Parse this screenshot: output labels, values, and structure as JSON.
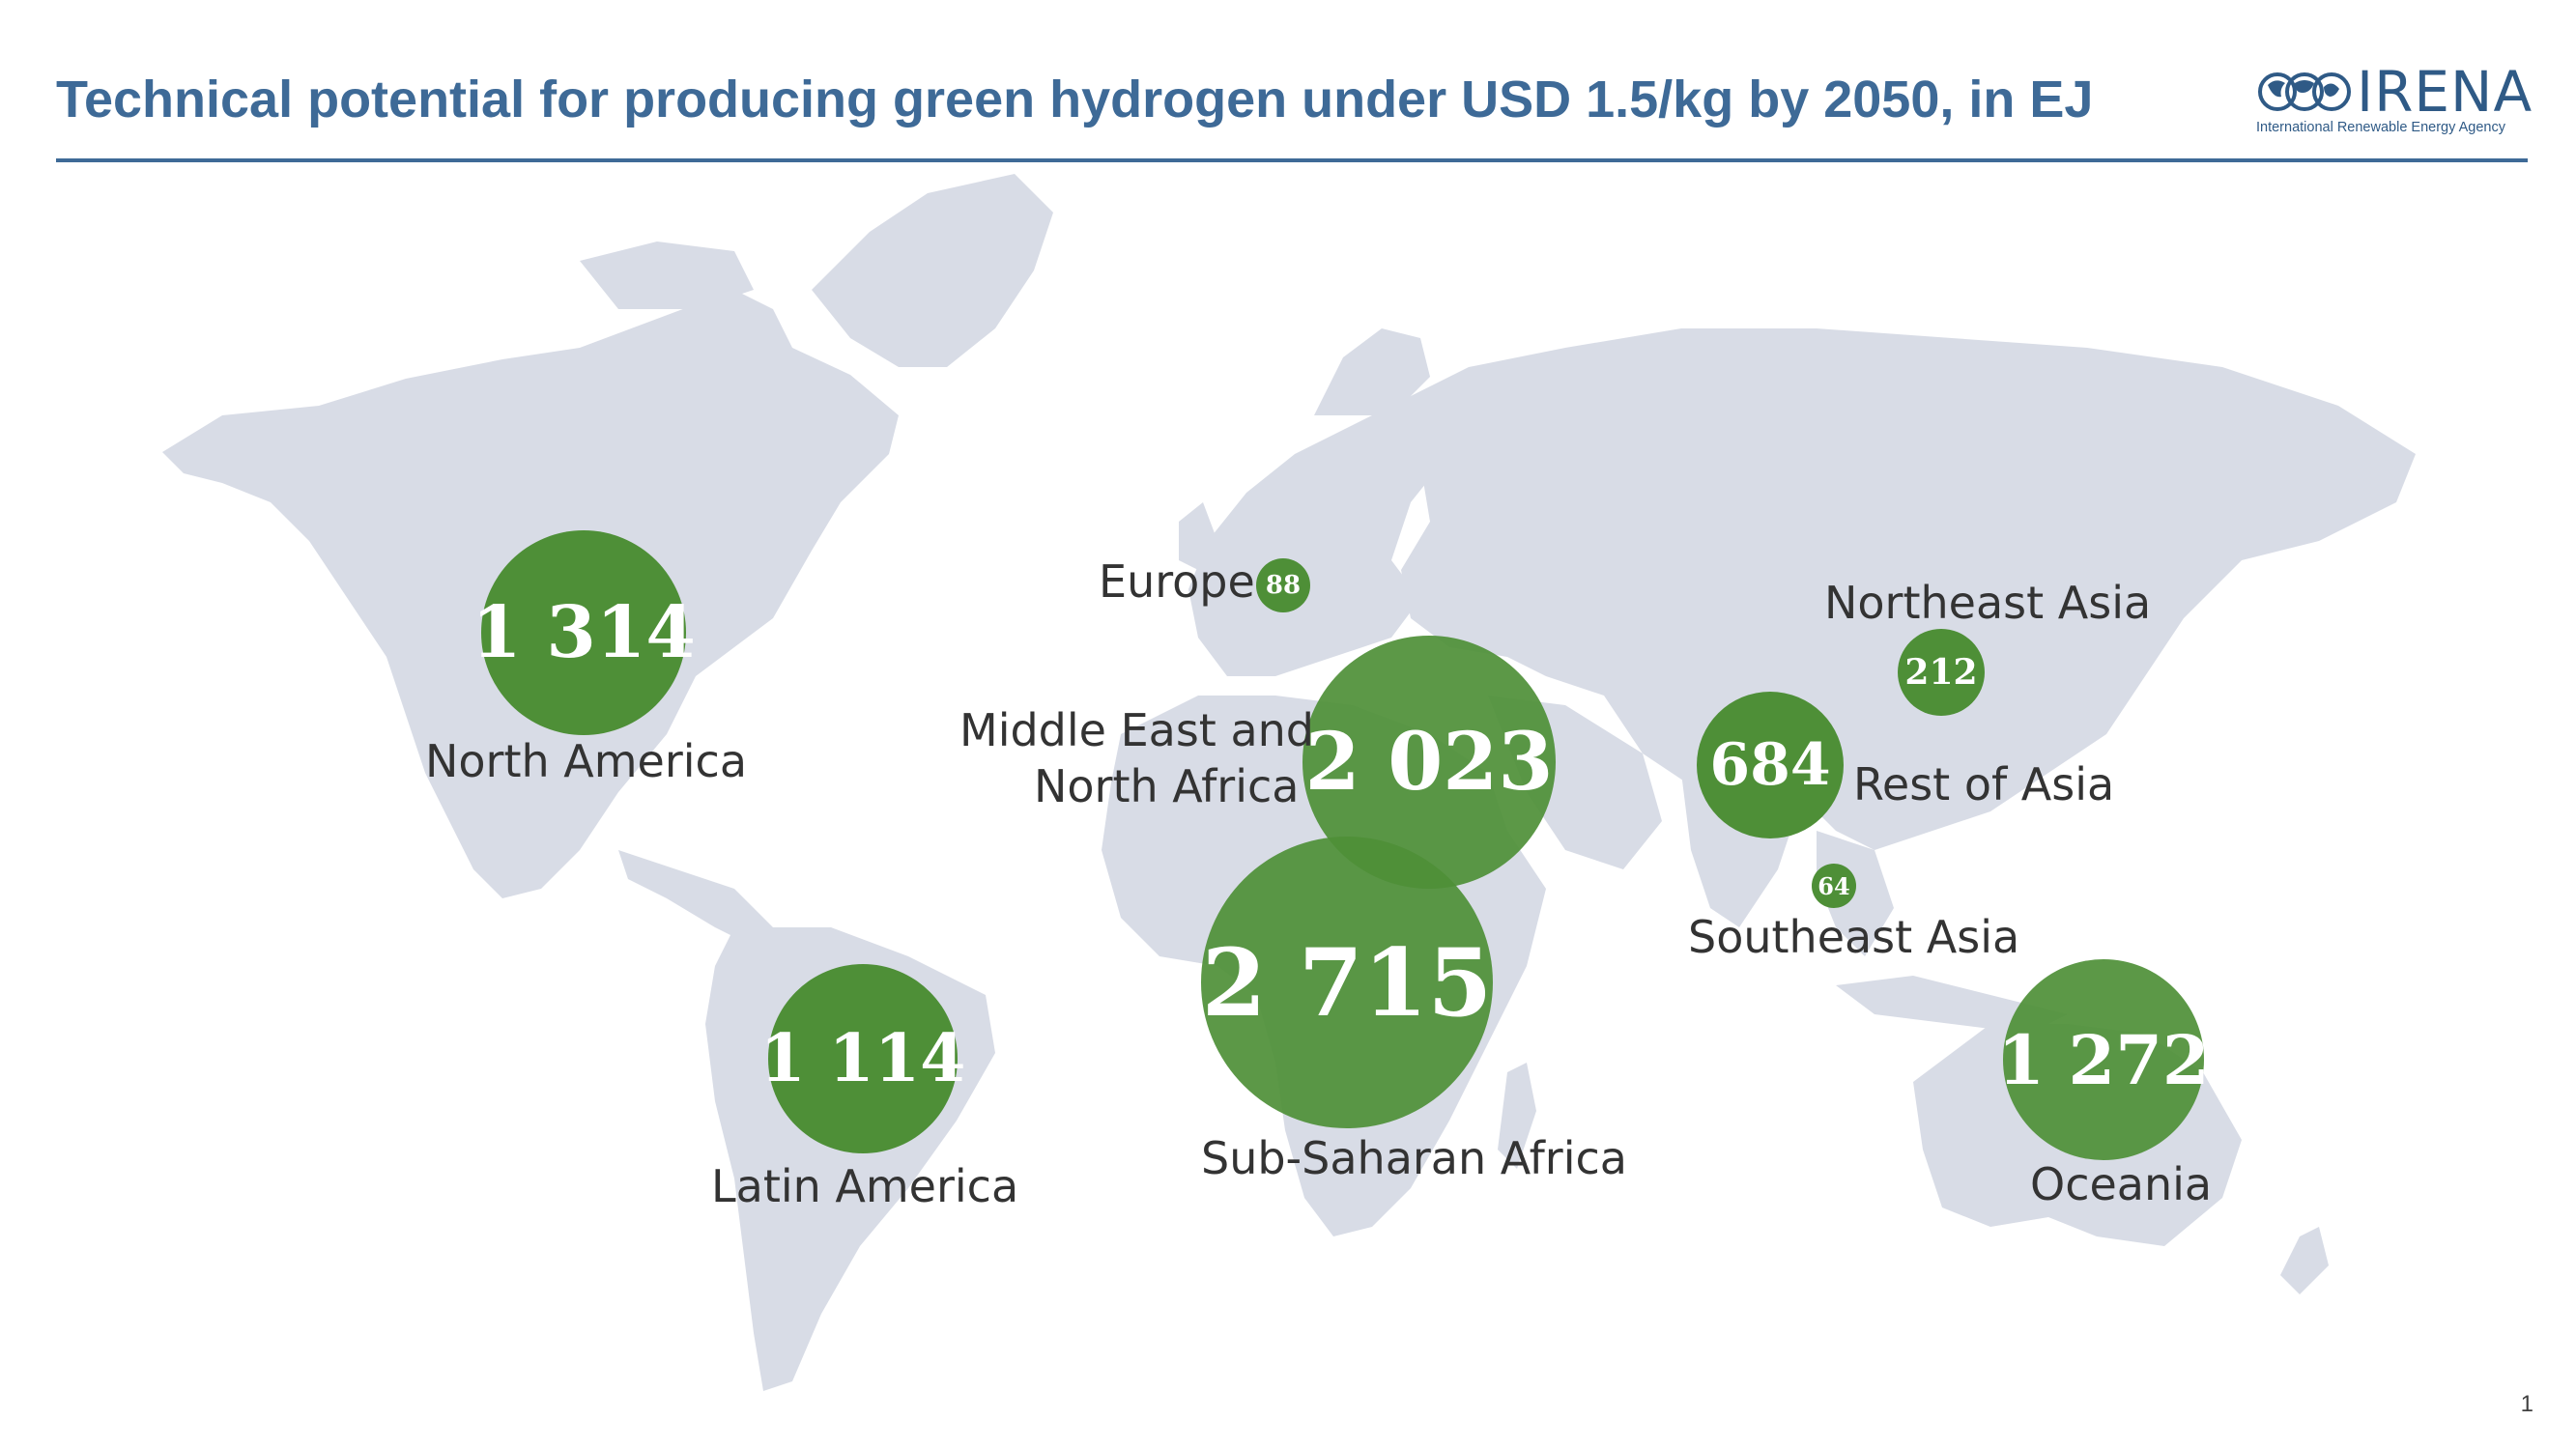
{
  "header": {
    "title": "Technical potential for producing green hydrogen under USD 1.5/kg by 2050, in EJ"
  },
  "logo": {
    "wordmark": "IRENA",
    "subtitle": "International Renewable Energy Agency"
  },
  "colors": {
    "title": "#3e6a97",
    "land": "#d8dce6",
    "bubble": "#4e8f37",
    "bubble_light": "#5fa641"
  },
  "regions": [
    {
      "id": "north-america",
      "name": "North America",
      "value": "1 314"
    },
    {
      "id": "latin-america",
      "name": "Latin America",
      "value": "1 114"
    },
    {
      "id": "europe",
      "name": "Europe",
      "value": "88"
    },
    {
      "id": "mena",
      "name_line1": "Middle East and",
      "name_line2": "North Africa",
      "value": "2 023"
    },
    {
      "id": "sub-saharan-africa",
      "name": "Sub-Saharan Africa",
      "value": "2 715"
    },
    {
      "id": "northeast-asia",
      "name": "Northeast Asia",
      "value": "212"
    },
    {
      "id": "rest-of-asia",
      "name": "Rest of Asia",
      "value": "684"
    },
    {
      "id": "southeast-asia",
      "name": "Southeast Asia",
      "value": "64"
    },
    {
      "id": "oceania",
      "name": "Oceania",
      "value": "1 272"
    }
  ],
  "page_number": "1"
}
